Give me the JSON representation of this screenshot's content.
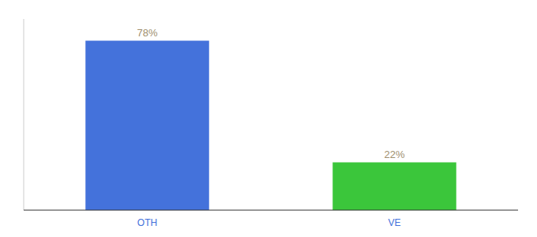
{
  "chart_data": {
    "type": "bar",
    "categories": [
      "OTH",
      "VE"
    ],
    "values": [
      78,
      22
    ],
    "colors": [
      "#4472db",
      "#3bc63b"
    ],
    "value_labels": [
      "78%",
      "22%"
    ],
    "data_labels": true,
    "ylim": [
      0,
      88
    ],
    "tick_labels": "x"
  }
}
